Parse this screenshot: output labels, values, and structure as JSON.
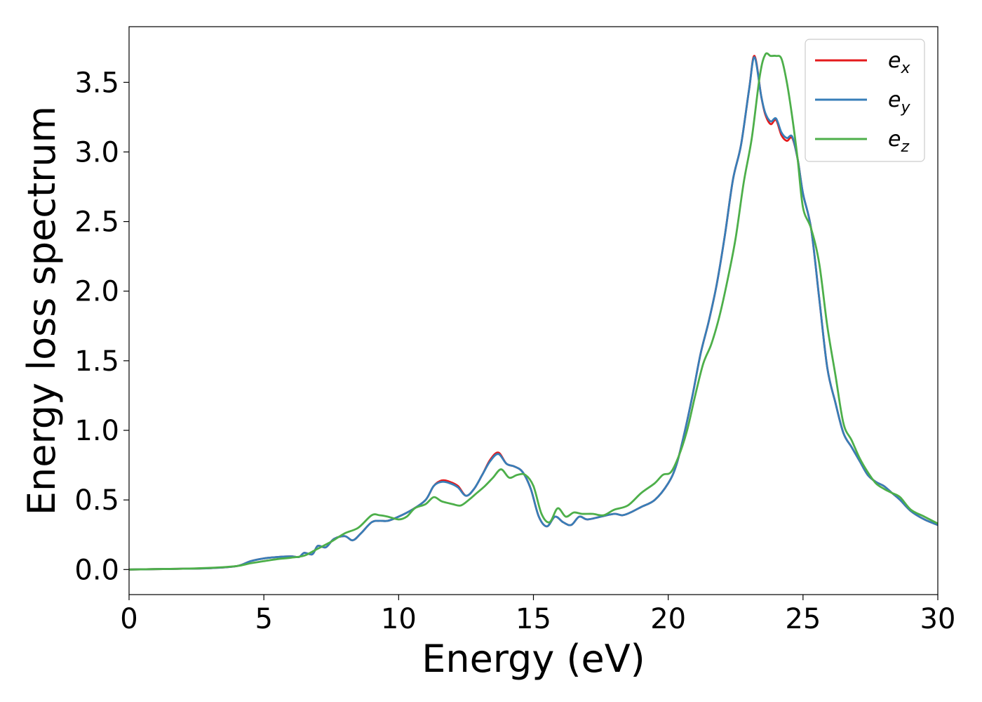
{
  "chart_data": {
    "type": "line",
    "title": "",
    "xlabel": "Energy (eV)",
    "ylabel": "Energy loss spectrum",
    "xlim": [
      0,
      30
    ],
    "ylim": [
      -0.18,
      3.9
    ],
    "xticks": [
      0,
      5,
      10,
      15,
      20,
      25,
      30
    ],
    "yticks": [
      0.0,
      0.5,
      1.0,
      1.5,
      2.0,
      2.5,
      3.0,
      3.5
    ],
    "grid": false,
    "legend_position": "top-right",
    "series": [
      {
        "name": "e",
        "sub": "x",
        "color": "#e41a1c",
        "x": [
          0,
          1,
          2,
          3,
          4,
          4.5,
          5,
          5.5,
          6,
          6.3,
          6.5,
          6.8,
          7,
          7.3,
          7.6,
          8,
          8.3,
          8.6,
          9,
          9.3,
          9.6,
          10,
          10.5,
          11,
          11.3,
          11.6,
          11.9,
          12.2,
          12.5,
          12.8,
          13.1,
          13.4,
          13.7,
          14,
          14.3,
          14.6,
          14.9,
          15.2,
          15.5,
          15.8,
          16.1,
          16.4,
          16.7,
          17,
          17.5,
          18,
          18.3,
          18.6,
          19,
          19.5,
          20,
          20.3,
          20.6,
          20.9,
          21.2,
          21.5,
          21.8,
          22.1,
          22.4,
          22.7,
          23.0,
          23.2,
          23.45,
          23.6,
          23.8,
          24.0,
          24.2,
          24.4,
          24.6,
          24.8,
          25.0,
          25.3,
          25.6,
          25.9,
          26.2,
          26.5,
          26.8,
          27.1,
          27.4,
          27.7,
          28,
          28.3,
          28.6,
          29,
          29.5,
          30
        ],
        "values": [
          0,
          0.003,
          0.006,
          0.01,
          0.025,
          0.06,
          0.08,
          0.09,
          0.095,
          0.09,
          0.12,
          0.11,
          0.17,
          0.16,
          0.22,
          0.24,
          0.21,
          0.26,
          0.34,
          0.35,
          0.35,
          0.38,
          0.43,
          0.5,
          0.6,
          0.64,
          0.63,
          0.6,
          0.53,
          0.58,
          0.68,
          0.79,
          0.84,
          0.76,
          0.74,
          0.7,
          0.58,
          0.38,
          0.31,
          0.38,
          0.34,
          0.32,
          0.38,
          0.36,
          0.38,
          0.4,
          0.39,
          0.41,
          0.45,
          0.5,
          0.62,
          0.75,
          0.98,
          1.25,
          1.55,
          1.78,
          2.05,
          2.4,
          2.8,
          3.05,
          3.45,
          3.69,
          3.4,
          3.27,
          3.2,
          3.23,
          3.12,
          3.08,
          3.1,
          2.95,
          2.7,
          2.45,
          1.95,
          1.45,
          1.2,
          0.98,
          0.88,
          0.78,
          0.68,
          0.63,
          0.6,
          0.55,
          0.5,
          0.42,
          0.36,
          0.32
        ]
      },
      {
        "name": "e",
        "sub": "y",
        "color": "#377eb8",
        "x": [
          0,
          1,
          2,
          3,
          4,
          4.5,
          5,
          5.5,
          6,
          6.3,
          6.5,
          6.8,
          7,
          7.3,
          7.6,
          8,
          8.3,
          8.6,
          9,
          9.3,
          9.6,
          10,
          10.5,
          11,
          11.3,
          11.6,
          11.9,
          12.2,
          12.5,
          12.8,
          13.1,
          13.4,
          13.7,
          14,
          14.3,
          14.6,
          14.9,
          15.2,
          15.5,
          15.8,
          16.1,
          16.4,
          16.7,
          17,
          17.5,
          18,
          18.3,
          18.6,
          19,
          19.5,
          20,
          20.3,
          20.6,
          20.9,
          21.2,
          21.5,
          21.8,
          22.1,
          22.4,
          22.7,
          23.0,
          23.2,
          23.45,
          23.6,
          23.8,
          24.0,
          24.2,
          24.4,
          24.6,
          24.8,
          25.0,
          25.3,
          25.6,
          25.9,
          26.2,
          26.5,
          26.8,
          27.1,
          27.4,
          27.7,
          28,
          28.3,
          28.6,
          29,
          29.5,
          30
        ],
        "values": [
          0,
          0.003,
          0.006,
          0.01,
          0.025,
          0.06,
          0.08,
          0.09,
          0.095,
          0.09,
          0.12,
          0.11,
          0.17,
          0.16,
          0.22,
          0.24,
          0.21,
          0.26,
          0.34,
          0.35,
          0.35,
          0.38,
          0.43,
          0.5,
          0.6,
          0.63,
          0.62,
          0.59,
          0.53,
          0.58,
          0.68,
          0.78,
          0.83,
          0.76,
          0.74,
          0.7,
          0.58,
          0.38,
          0.31,
          0.38,
          0.34,
          0.32,
          0.38,
          0.36,
          0.38,
          0.4,
          0.39,
          0.41,
          0.45,
          0.5,
          0.62,
          0.75,
          0.98,
          1.25,
          1.55,
          1.78,
          2.05,
          2.4,
          2.8,
          3.05,
          3.45,
          3.68,
          3.4,
          3.28,
          3.22,
          3.24,
          3.14,
          3.1,
          3.11,
          2.95,
          2.7,
          2.45,
          1.95,
          1.45,
          1.2,
          0.98,
          0.88,
          0.78,
          0.68,
          0.63,
          0.6,
          0.55,
          0.5,
          0.42,
          0.36,
          0.32
        ]
      },
      {
        "name": "e",
        "sub": "z",
        "color": "#4daf4a",
        "x": [
          0,
          1,
          2,
          3,
          4,
          4.5,
          5,
          5.5,
          6,
          6.5,
          7,
          7.5,
          8,
          8.5,
          9,
          9.3,
          9.6,
          10,
          10.3,
          10.6,
          11,
          11.3,
          11.6,
          12,
          12.3,
          12.6,
          12.9,
          13.2,
          13.5,
          13.8,
          14.1,
          14.4,
          14.7,
          15,
          15.3,
          15.6,
          15.9,
          16.2,
          16.5,
          16.8,
          17.2,
          17.6,
          18,
          18.5,
          19,
          19.5,
          19.8,
          20.1,
          20.4,
          20.7,
          21,
          21.3,
          21.6,
          21.9,
          22.2,
          22.5,
          22.8,
          23.1,
          23.4,
          23.6,
          23.8,
          24.0,
          24.2,
          24.4,
          24.6,
          24.8,
          25.0,
          25.3,
          25.6,
          25.9,
          26.2,
          26.5,
          26.8,
          27.1,
          27.4,
          27.7,
          28,
          28.3,
          28.6,
          29,
          29.5,
          30
        ],
        "values": [
          0,
          0.003,
          0.006,
          0.012,
          0.025,
          0.045,
          0.06,
          0.075,
          0.085,
          0.1,
          0.15,
          0.2,
          0.26,
          0.3,
          0.39,
          0.39,
          0.38,
          0.36,
          0.38,
          0.44,
          0.47,
          0.52,
          0.49,
          0.47,
          0.46,
          0.5,
          0.55,
          0.6,
          0.66,
          0.72,
          0.66,
          0.68,
          0.68,
          0.6,
          0.4,
          0.34,
          0.44,
          0.38,
          0.41,
          0.4,
          0.4,
          0.39,
          0.43,
          0.46,
          0.55,
          0.62,
          0.68,
          0.7,
          0.82,
          1.0,
          1.25,
          1.48,
          1.62,
          1.82,
          2.08,
          2.38,
          2.78,
          3.1,
          3.55,
          3.7,
          3.69,
          3.69,
          3.67,
          3.5,
          3.25,
          2.95,
          2.6,
          2.45,
          2.2,
          1.75,
          1.4,
          1.05,
          0.93,
          0.8,
          0.7,
          0.62,
          0.58,
          0.55,
          0.52,
          0.43,
          0.38,
          0.33
        ]
      }
    ]
  }
}
